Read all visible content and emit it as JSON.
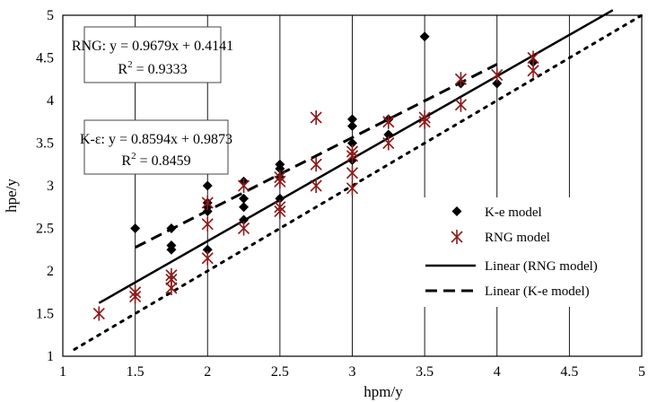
{
  "chart_data": {
    "type": "scatter",
    "xlabel": "hpm/y",
    "ylabel": "hpe/y",
    "xlim": [
      1,
      5
    ],
    "ylim": [
      1,
      5
    ],
    "xticks": [
      "1",
      "1.5",
      "2",
      "2.5",
      "3",
      "3.5",
      "4",
      "4.5",
      "5"
    ],
    "yticks": [
      "1",
      "1.5",
      "2",
      "2.5",
      "3",
      "3.5",
      "4",
      "4.5",
      "5"
    ],
    "grid": "vertical",
    "legend_position": "lower-right",
    "series": [
      {
        "name": "K-e model",
        "marker": "diamond",
        "color": "#000000",
        "points": [
          [
            1.5,
            2.5
          ],
          [
            1.75,
            2.5
          ],
          [
            1.75,
            2.3
          ],
          [
            1.75,
            2.25
          ],
          [
            2.0,
            3.0
          ],
          [
            2.0,
            2.8
          ],
          [
            2.0,
            2.75
          ],
          [
            2.0,
            2.7
          ],
          [
            2.0,
            2.25
          ],
          [
            2.25,
            3.05
          ],
          [
            2.25,
            2.85
          ],
          [
            2.25,
            2.75
          ],
          [
            2.25,
            2.6
          ],
          [
            2.5,
            3.25
          ],
          [
            2.5,
            3.2
          ],
          [
            2.5,
            3.1
          ],
          [
            2.5,
            2.85
          ],
          [
            3.0,
            3.78
          ],
          [
            3.0,
            3.7
          ],
          [
            3.0,
            3.5
          ],
          [
            3.0,
            3.3
          ],
          [
            3.25,
            3.78
          ],
          [
            3.25,
            3.6
          ],
          [
            3.5,
            4.75
          ],
          [
            3.75,
            4.2
          ],
          [
            4.0,
            4.2
          ],
          [
            4.25,
            4.45
          ]
        ]
      },
      {
        "name": "RNG model",
        "marker": "asterisk",
        "color": "#8b1a1a",
        "points": [
          [
            1.25,
            1.5
          ],
          [
            1.5,
            1.75
          ],
          [
            1.5,
            1.7
          ],
          [
            1.75,
            1.95
          ],
          [
            1.75,
            1.9
          ],
          [
            1.75,
            1.8
          ],
          [
            2.0,
            2.8
          ],
          [
            2.0,
            2.55
          ],
          [
            2.0,
            2.15
          ],
          [
            2.25,
            3.0
          ],
          [
            2.25,
            2.5
          ],
          [
            2.5,
            3.1
          ],
          [
            2.5,
            3.05
          ],
          [
            2.5,
            2.75
          ],
          [
            2.5,
            2.7
          ],
          [
            2.75,
            3.8
          ],
          [
            2.75,
            3.25
          ],
          [
            2.75,
            3.0
          ],
          [
            3.0,
            3.4
          ],
          [
            3.0,
            3.35
          ],
          [
            3.0,
            3.15
          ],
          [
            3.0,
            2.97
          ],
          [
            3.25,
            3.75
          ],
          [
            3.25,
            3.5
          ],
          [
            3.5,
            3.8
          ],
          [
            3.5,
            3.75
          ],
          [
            3.75,
            4.25
          ],
          [
            3.75,
            3.95
          ],
          [
            4.0,
            4.3
          ],
          [
            4.25,
            4.5
          ],
          [
            4.25,
            4.35
          ]
        ]
      }
    ],
    "lines": [
      {
        "name": "Linear (RNG model)",
        "style": "solid",
        "slope": 0.9679,
        "intercept": 0.4141,
        "x_range": [
          1.25,
          4.8
        ]
      },
      {
        "name": "Linear (K-e model)",
        "style": "dashed",
        "slope": 0.8594,
        "intercept": 0.9873,
        "x_range": [
          1.5,
          4.0
        ]
      },
      {
        "name": "",
        "style": "dotted",
        "slope": 1,
        "intercept": 0,
        "x_range": [
          1.08,
          5
        ]
      }
    ],
    "annotations": [
      {
        "line1": "RNG: y = 0.9679x + 0.4141",
        "line2_base": "R",
        "line2_sup": "2",
        "line2_rest": " = 0.9333"
      },
      {
        "line1": "K-ε: y = 0.8594x + 0.9873",
        "line2_base": "R",
        "line2_sup": "2",
        "line2_rest": " = 0.8459"
      }
    ]
  }
}
